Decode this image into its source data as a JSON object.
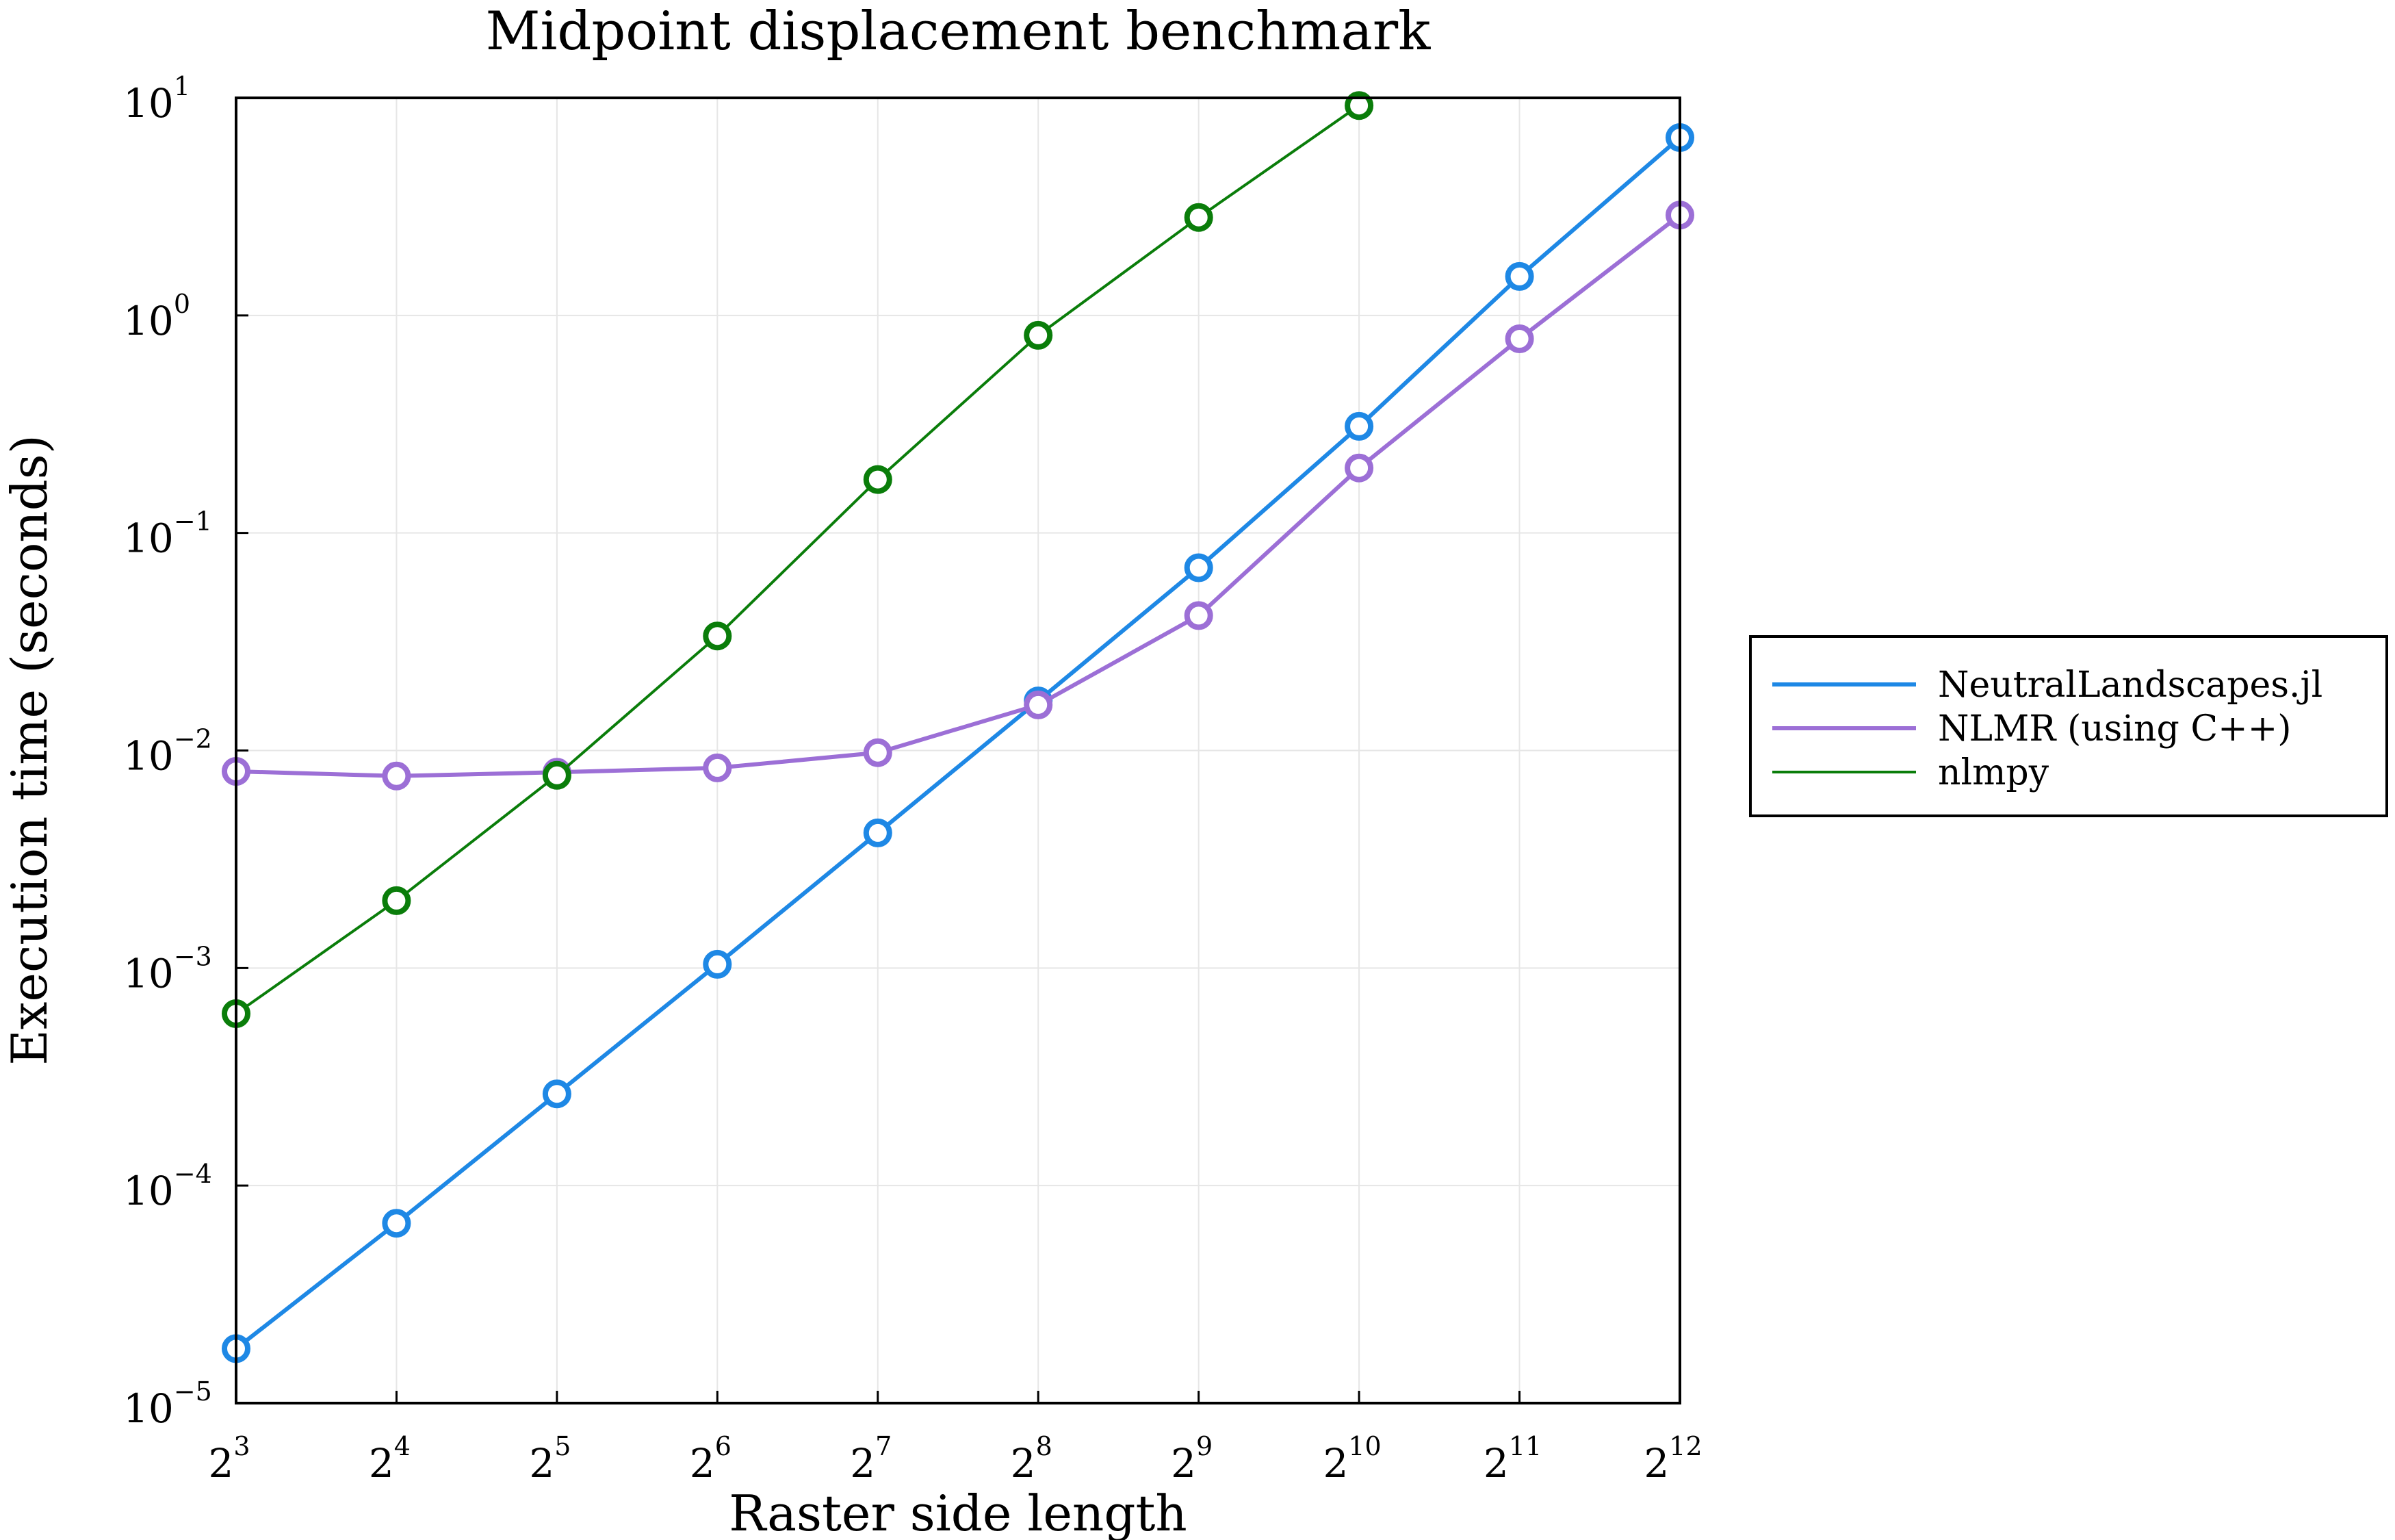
{
  "chart_data": {
    "type": "line",
    "title": "Midpoint displacement benchmark",
    "xlabel": "Raster side length",
    "ylabel": "Execution time (seconds)",
    "x_scale": "log2",
    "y_scale": "log10",
    "x": [
      8,
      16,
      32,
      64,
      128,
      256,
      512,
      1024,
      2048,
      4096
    ],
    "x_tick_labels": [
      {
        "base": "2",
        "exp": "3"
      },
      {
        "base": "2",
        "exp": "4"
      },
      {
        "base": "2",
        "exp": "5"
      },
      {
        "base": "2",
        "exp": "6"
      },
      {
        "base": "2",
        "exp": "7"
      },
      {
        "base": "2",
        "exp": "8"
      },
      {
        "base": "2",
        "exp": "9"
      },
      {
        "base": "2",
        "exp": "10"
      },
      {
        "base": "2",
        "exp": "11"
      },
      {
        "base": "2",
        "exp": "12"
      }
    ],
    "y_tick_labels": [
      {
        "base": "10",
        "exp": "1"
      },
      {
        "base": "10",
        "exp": "0"
      },
      {
        "base": "10",
        "exp": "−1"
      },
      {
        "base": "10",
        "exp": "−2"
      },
      {
        "base": "10",
        "exp": "−3"
      },
      {
        "base": "10",
        "exp": "−4"
      },
      {
        "base": "10",
        "exp": "−5"
      }
    ],
    "y_ticks": [
      10,
      1,
      0.1,
      0.01,
      0.001,
      0.0001,
      1e-05
    ],
    "xlim": [
      8,
      4096
    ],
    "ylim": [
      1e-05,
      10
    ],
    "grid": true,
    "legend_position": "outside-right",
    "series": [
      {
        "name": "NeutralLandscapes.jl",
        "color": "#1e88e5",
        "values": [
          1.78e-05,
          6.71e-05,
          0.000264,
          0.00104,
          0.00418,
          0.0169,
          0.0692,
          0.309,
          1.51,
          6.57
        ]
      },
      {
        "name": "NLMR (using C++)",
        "color": "#9c6fd6",
        "values": [
          0.00802,
          0.00763,
          0.00794,
          0.00832,
          0.00977,
          0.0162,
          0.0417,
          0.199,
          0.781,
          2.89
        ]
      },
      {
        "name": "nlmpy",
        "color": "#0a7d0a",
        "values": [
          0.000617,
          0.00204,
          0.00769,
          0.0336,
          0.176,
          0.81,
          2.82,
          9.22,
          null,
          null
        ]
      }
    ]
  }
}
